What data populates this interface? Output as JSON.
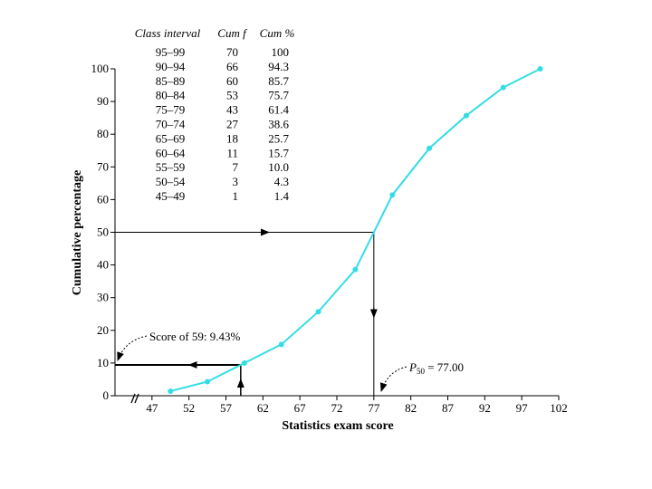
{
  "chart_data": {
    "type": "line",
    "title": "",
    "xlabel": "Statistics exam score",
    "ylabel": "Cumulative percentage",
    "x_ticks": [
      47,
      52,
      57,
      62,
      67,
      72,
      77,
      82,
      87,
      92,
      97,
      102
    ],
    "y_ticks": [
      0,
      10,
      20,
      30,
      40,
      50,
      60,
      70,
      80,
      90,
      100
    ],
    "xlim": [
      42,
      102
    ],
    "ylim": [
      0,
      100
    ],
    "axis_break": true,
    "grid": false,
    "series": [
      {
        "color": "#33dde6",
        "x": [
          49.5,
          54.5,
          59.5,
          64.5,
          69.5,
          74.5,
          79.5,
          84.5,
          89.5,
          94.5,
          99.5
        ],
        "y": [
          1.4,
          4.3,
          10.0,
          15.7,
          25.7,
          38.6,
          61.4,
          75.7,
          85.7,
          94.3,
          100
        ]
      }
    ],
    "table": {
      "headers": [
        "Class interval",
        "Cum f",
        "Cum %"
      ],
      "rows": [
        [
          "95–99",
          "70",
          "100"
        ],
        [
          "90–94",
          "66",
          "94.3"
        ],
        [
          "85–89",
          "60",
          "85.7"
        ],
        [
          "80–84",
          "53",
          "75.7"
        ],
        [
          "75–79",
          "43",
          "61.4"
        ],
        [
          "70–74",
          "27",
          "38.6"
        ],
        [
          "65–69",
          "18",
          "25.7"
        ],
        [
          "60–64",
          "11",
          "15.7"
        ],
        [
          "55–59",
          "7",
          "10.0"
        ],
        [
          "50–54",
          "3",
          "4.3"
        ],
        [
          "45–49",
          "1",
          "1.4"
        ]
      ]
    },
    "annotations": {
      "score59": {
        "text": "Score of 59: 9.43%",
        "x": 59,
        "y": 9.43
      },
      "p50": {
        "text_prefix": "P",
        "text_sub": "50",
        "text_suffix": " = 77.00",
        "x": 77,
        "y": 50
      }
    }
  }
}
